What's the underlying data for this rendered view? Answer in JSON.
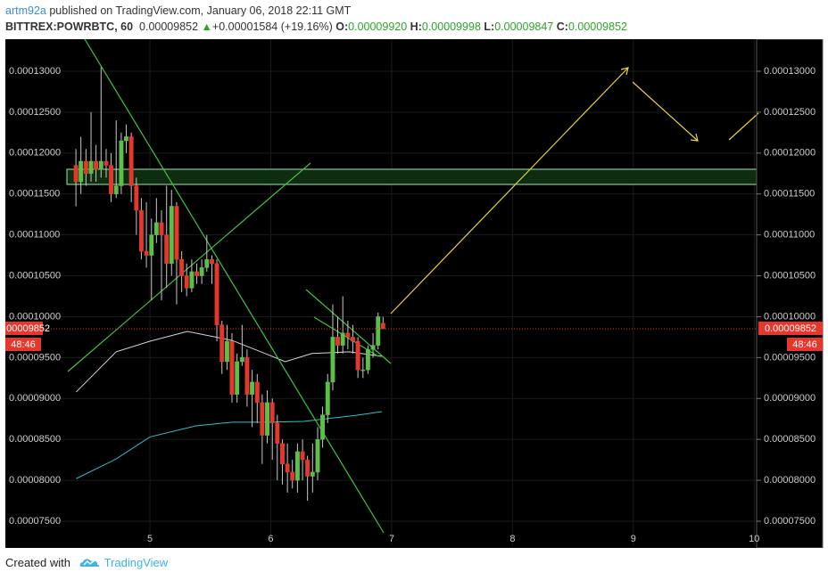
{
  "header": {
    "author": "artm92a",
    "published": "published on TradingView.com, January 06, 2018 22:11 GMT",
    "symbol": "BITTREX:POWRBTC, 60",
    "last": "0.00009852",
    "arrow": "▲",
    "change": "+0.00001584 (+19.16%)",
    "o_label": "O:",
    "o": "0.00009920",
    "h_label": "H:",
    "h": "0.00009998",
    "l_label": "L:",
    "l": "0.00009847",
    "c_label": "C:",
    "c": "0.00009852"
  },
  "footer": {
    "created": "Created with",
    "brand": "TradingView"
  },
  "chart_data": {
    "type": "candlestick",
    "up_color": "#5bc04a",
    "down_color": "#e5382c",
    "price_label": "0.00009852",
    "countdown": "48:46",
    "x": [
      4.388,
      4.429,
      4.471,
      4.513,
      4.554,
      4.596,
      4.638,
      4.679,
      4.721,
      4.763,
      4.804,
      4.846,
      4.888,
      4.929,
      4.971,
      5.013,
      5.054,
      5.096,
      5.138,
      5.179,
      5.221,
      5.263,
      5.304,
      5.346,
      5.388,
      5.429,
      5.471,
      5.513,
      5.554,
      5.596,
      5.638,
      5.679,
      5.721,
      5.763,
      5.804,
      5.846,
      5.888,
      5.929,
      5.971,
      6.013,
      6.054,
      6.096,
      6.138,
      6.179,
      6.221,
      6.263,
      6.304,
      6.346,
      6.388,
      6.429,
      6.471,
      6.513,
      6.554,
      6.596,
      6.638,
      6.679,
      6.721,
      6.763,
      6.804,
      6.846,
      6.888,
      6.929
    ],
    "open": [
      0.0001185,
      0.0001165,
      0.000119,
      0.0001175,
      0.000119,
      0.000118,
      0.000119,
      0.0001185,
      0.000115,
      0.000116,
      0.0001215,
      0.000122,
      0.000116,
      0.000113,
      0.000108,
      0.0001075,
      0.00011,
      0.0001115,
      0.00011,
      0.0001065,
      0.0001135,
      0.000107,
      0.000105,
      0.0001035,
      0.0001055,
      0.000105,
      0.000106,
      0.000107,
      0.0001065,
      9.9e-05,
      9.45e-05,
      9.7e-05,
      9.05e-05,
      9.45e-05,
      9.5e-05,
      9.05e-05,
      9.2e-05,
      8.95e-05,
      8.55e-05,
      8.95e-05,
      8.7e-05,
      8.45e-05,
      8.2e-05,
      8.1e-05,
      8e-05,
      8.35e-05,
      8.25e-05,
      8.05e-05,
      8.1e-05,
      8.5e-05,
      8.8e-05,
      9.2e-05,
      9.75e-05,
      9.65e-05,
      9.8e-05,
      9.75e-05,
      9.7e-05,
      9.35e-05,
      9.35e-05,
      9.6e-05,
      9.65e-05,
      9.92e-05
    ],
    "high": [
      0.0001205,
      0.000122,
      0.0001205,
      0.000125,
      0.000121,
      0.0001305,
      0.0001205,
      0.00012,
      0.000124,
      0.0001225,
      0.0001235,
      0.0001225,
      0.000117,
      0.0001145,
      0.000114,
      0.000112,
      0.0001145,
      0.000113,
      0.000116,
      0.0001155,
      0.000114,
      0.000108,
      0.0001065,
      0.000107,
      0.0001065,
      0.000107,
      0.00011,
      0.0001075,
      0.000107,
      9.95e-05,
      9.9e-05,
      9.8e-05,
      9.55e-05,
      9.9e-05,
      9.6e-05,
      9.35e-05,
      9.3e-05,
      9.05e-05,
      9.1e-05,
      9e-05,
      8.8e-05,
      8.5e-05,
      8.45e-05,
      8.25e-05,
      8.45e-05,
      8.5e-05,
      8.3e-05,
      8.45e-05,
      8.65e-05,
      8.9e-05,
      9.3e-05,
      0.0001015,
      0.0001,
      0.0001025,
      9.95e-05,
      9.9e-05,
      9.75e-05,
      9.5e-05,
      9.65e-05,
      9.8e-05,
      0.0001005,
      9.998e-05
    ],
    "low": [
      0.0001135,
      0.000115,
      0.000116,
      0.0001165,
      0.0001165,
      0.000117,
      0.000117,
      0.000114,
      0.0001145,
      0.000115,
      0.00012,
      0.000114,
      0.00011,
      0.000107,
      0.000106,
      0.000102,
      0.000109,
      0.000102,
      0.0001035,
      0.000105,
      0.0001015,
      0.000103,
      0.0001025,
      0.000103,
      0.000104,
      0.000104,
      0.0001055,
      0.000104,
      9.7e-05,
      9.3e-05,
      9.35e-05,
      8.95e-05,
      8.95e-05,
      9.4e-05,
      8.9e-05,
      8.65e-05,
      8.7e-05,
      8.2e-05,
      8.45e-05,
      8.25e-05,
      8e-05,
      7.95e-05,
      7.85e-05,
      7.9e-05,
      7.85e-05,
      8e-05,
      7.75e-05,
      7.85e-05,
      8e-05,
      8.4e-05,
      8.7e-05,
      9.1e-05,
      9.55e-05,
      9.55e-05,
      9.6e-05,
      9.55e-05,
      9.25e-05,
      9.25e-05,
      9.3e-05,
      9.5e-05,
      9.6e-05,
      9.847e-05
    ],
    "close": [
      0.0001165,
      0.000119,
      0.0001175,
      0.000119,
      0.000118,
      0.000119,
      0.0001185,
      0.000115,
      0.000116,
      0.0001215,
      0.000122,
      0.000116,
      0.000113,
      0.000108,
      0.0001075,
      0.00011,
      0.0001115,
      0.00011,
      0.0001065,
      0.0001135,
      0.000107,
      0.000105,
      0.0001035,
      0.0001055,
      0.000105,
      0.000106,
      0.000107,
      0.0001065,
      9.9e-05,
      9.45e-05,
      9.7e-05,
      9.05e-05,
      9.45e-05,
      9.5e-05,
      9.05e-05,
      9.2e-05,
      8.95e-05,
      8.55e-05,
      8.95e-05,
      8.7e-05,
      8.45e-05,
      8.2e-05,
      8.1e-05,
      8e-05,
      8.35e-05,
      8.25e-05,
      8.05e-05,
      8.1e-05,
      8.5e-05,
      8.8e-05,
      9.2e-05,
      9.75e-05,
      9.65e-05,
      9.8e-05,
      9.75e-05,
      9.7e-05,
      9.35e-05,
      9.35e-05,
      9.6e-05,
      9.65e-05,
      0.0001,
      9.852e-05
    ],
    "overlays": [
      {
        "color": "#d8d8d8",
        "x": [
          4.39,
          4.72,
          5.0,
          5.31,
          5.68,
          5.97,
          6.12,
          6.34,
          6.65,
          6.92
        ],
        "values": [
          9.08e-05,
          9.57e-05,
          9.7e-05,
          9.82e-05,
          9.71e-05,
          9.54e-05,
          9.45e-05,
          9.55e-05,
          9.57e-05,
          9.515e-05
        ]
      },
      {
        "color": "#2fc1c9",
        "x": [
          4.39,
          4.72,
          5.0,
          5.38,
          5.68,
          5.97,
          6.27,
          6.71,
          6.92
        ],
        "values": [
          8.02e-05,
          8.26e-05,
          8.53e-05,
          8.665e-05,
          8.71e-05,
          8.71e-05,
          8.72e-05,
          8.795e-05,
          8.84e-05
        ]
      }
    ],
    "xlim": [
      3.804,
      10.02
    ],
    "ylim": [
      7.206e-05,
      0.00013392
    ],
    "xticks": [
      5,
      6,
      7,
      8,
      9,
      10
    ],
    "yticks": [
      {
        "value": 7.5e-05,
        "label": "0.00007500"
      },
      {
        "value": 8e-05,
        "label": "0.00008000"
      },
      {
        "value": 8.5e-05,
        "label": "0.00008500"
      },
      {
        "value": 9e-05,
        "label": "0.00009000"
      },
      {
        "value": 9.5e-05,
        "label": "0.00009500"
      },
      {
        "value": 0.0001,
        "label": "0.00010000"
      },
      {
        "value": 0.000105,
        "label": "0.00010500"
      },
      {
        "value": 0.00011,
        "label": "0.00011000"
      },
      {
        "value": 0.000115,
        "label": "0.00011500"
      },
      {
        "value": 0.00012,
        "label": "0.00012000"
      },
      {
        "value": 0.000125,
        "label": "0.00012500"
      },
      {
        "value": 0.00013,
        "label": "0.00013000"
      }
    ],
    "grid": true
  }
}
